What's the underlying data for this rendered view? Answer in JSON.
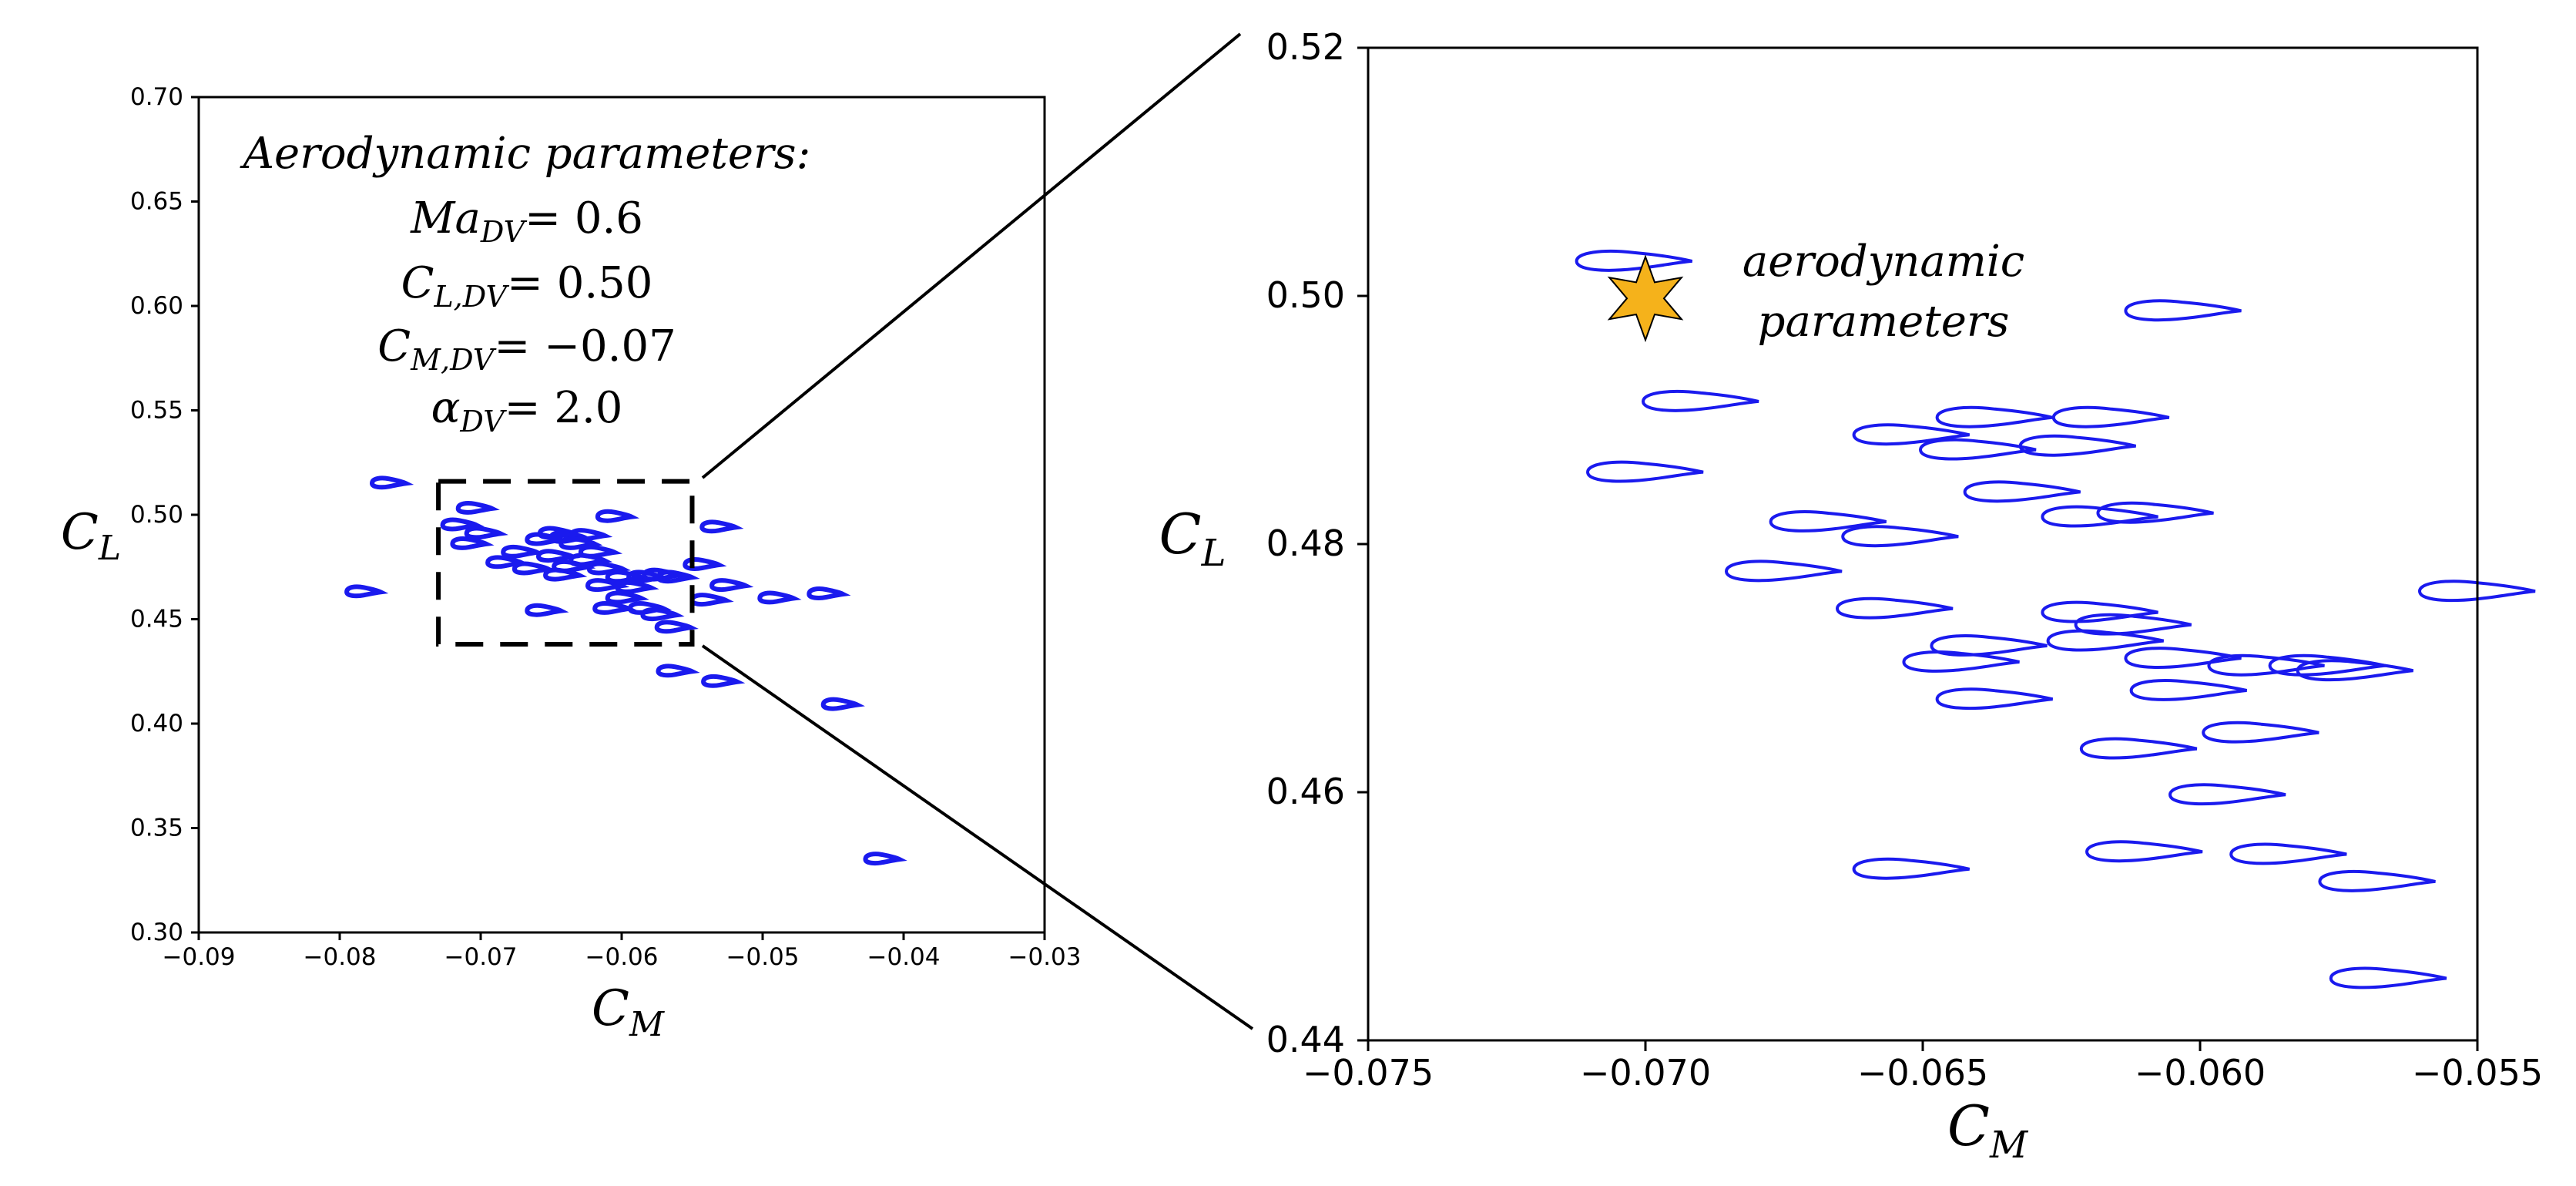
{
  "colors": {
    "airfoil": "#1a1aee",
    "star": "#f5b21b",
    "axes": "#000000",
    "zoom_box": "#000000"
  },
  "chart_data": [
    {
      "id": "overview",
      "type": "scatter",
      "marker": "airfoil-shape",
      "xlabel": "C_M",
      "ylabel": "C_L",
      "xlim": [
        -0.09,
        -0.03
      ],
      "ylim": [
        0.3,
        0.7
      ],
      "xticks": [
        "−0.09",
        "−0.08",
        "−0.07",
        "−0.06",
        "−0.05",
        "−0.04",
        "−0.03"
      ],
      "yticks": [
        "0.30",
        "0.35",
        "0.40",
        "0.45",
        "0.50",
        "0.55",
        "0.60",
        "0.65",
        "0.70"
      ],
      "grid": false,
      "annotation": {
        "heading": "Aerodynamic parameters:",
        "ma": "= 0.6",
        "cl": "= 0.50",
        "cm": "= −0.07",
        "alpha": "= 2.0"
      },
      "zoom_box": {
        "xmin": -0.073,
        "xmax": -0.055,
        "ymin": 0.438,
        "ymax": 0.516
      },
      "points": [
        [
          -0.0765,
          0.515
        ],
        [
          -0.0783,
          0.463
        ],
        [
          -0.0704,
          0.503
        ],
        [
          -0.0715,
          0.495
        ],
        [
          -0.0698,
          0.491
        ],
        [
          -0.0708,
          0.486
        ],
        [
          -0.0683,
          0.477
        ],
        [
          -0.0672,
          0.482
        ],
        [
          -0.0664,
          0.474
        ],
        [
          -0.0655,
          0.488
        ],
        [
          -0.0646,
          0.491
        ],
        [
          -0.0638,
          0.489
        ],
        [
          -0.0631,
          0.486
        ],
        [
          -0.0647,
          0.48
        ],
        [
          -0.0642,
          0.471
        ],
        [
          -0.0636,
          0.475
        ],
        [
          -0.0624,
          0.478
        ],
        [
          -0.0617,
          0.482
        ],
        [
          -0.0624,
          0.49
        ],
        [
          -0.0605,
          0.499
        ],
        [
          -0.0611,
          0.474
        ],
        [
          -0.0598,
          0.47
        ],
        [
          -0.0591,
          0.465
        ],
        [
          -0.0583,
          0.47
        ],
        [
          -0.0572,
          0.471
        ],
        [
          -0.0562,
          0.47
        ],
        [
          -0.0612,
          0.466
        ],
        [
          -0.0598,
          0.46
        ],
        [
          -0.0607,
          0.455
        ],
        [
          -0.0582,
          0.455
        ],
        [
          -0.0573,
          0.452
        ],
        [
          -0.0655,
          0.454
        ],
        [
          -0.0563,
          0.446
        ],
        [
          -0.0531,
          0.494
        ],
        [
          -0.0543,
          0.476
        ],
        [
          -0.0524,
          0.466
        ],
        [
          -0.0538,
          0.459
        ],
        [
          -0.049,
          0.46
        ],
        [
          -0.0455,
          0.462
        ],
        [
          -0.0562,
          0.425
        ],
        [
          -0.053,
          0.42
        ],
        [
          -0.0445,
          0.409
        ],
        [
          -0.0415,
          0.335
        ]
      ]
    },
    {
      "id": "zoom",
      "type": "scatter",
      "marker": "airfoil-shape",
      "xlabel": "C_M",
      "ylabel": "C_L",
      "xlim": [
        -0.075,
        -0.055
      ],
      "ylim": [
        0.44,
        0.52
      ],
      "xticks": [
        "−0.075",
        "−0.070",
        "−0.065",
        "−0.060",
        "−0.055"
      ],
      "yticks": [
        "0.44",
        "0.46",
        "0.48",
        "0.50",
        "0.52"
      ],
      "grid": false,
      "star_point": [
        -0.07,
        0.4998
      ],
      "star_label": [
        "aerodynamic",
        "parameters"
      ],
      "points": [
        [
          -0.0702,
          0.5028
        ],
        [
          -0.069,
          0.4915
        ],
        [
          -0.07,
          0.4858
        ],
        [
          -0.0667,
          0.4818
        ],
        [
          -0.0675,
          0.4778
        ],
        [
          -0.0654,
          0.4806
        ],
        [
          -0.0655,
          0.4748
        ],
        [
          -0.0652,
          0.4888
        ],
        [
          -0.064,
          0.4876
        ],
        [
          -0.0637,
          0.4902
        ],
        [
          -0.0632,
          0.4842
        ],
        [
          -0.0622,
          0.4879
        ],
        [
          -0.0616,
          0.4902
        ],
        [
          -0.0603,
          0.4988
        ],
        [
          -0.0618,
          0.4822
        ],
        [
          -0.0608,
          0.4825
        ],
        [
          -0.0618,
          0.4745
        ],
        [
          -0.0612,
          0.4735
        ],
        [
          -0.0638,
          0.4718
        ],
        [
          -0.0643,
          0.4705
        ],
        [
          -0.0617,
          0.4722
        ],
        [
          -0.0603,
          0.4708
        ],
        [
          -0.0588,
          0.4702
        ],
        [
          -0.0577,
          0.4702
        ],
        [
          -0.0572,
          0.4698
        ],
        [
          -0.0637,
          0.4675
        ],
        [
          -0.0602,
          0.4682
        ],
        [
          -0.0589,
          0.4648
        ],
        [
          -0.0611,
          0.4635
        ],
        [
          -0.0595,
          0.4598
        ],
        [
          -0.061,
          0.4552
        ],
        [
          -0.0584,
          0.455
        ],
        [
          -0.0568,
          0.4528
        ],
        [
          -0.0652,
          0.4538
        ],
        [
          -0.0566,
          0.445
        ],
        [
          -0.055,
          0.4762
        ]
      ]
    }
  ]
}
